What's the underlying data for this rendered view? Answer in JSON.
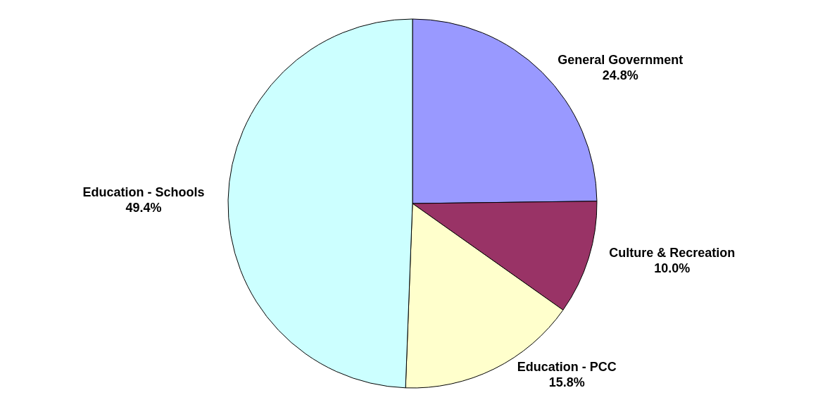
{
  "chart_data": {
    "type": "pie",
    "categories": [
      "General Government",
      "Culture & Recreation",
      "Education - PCC",
      "Education - Schools"
    ],
    "values": [
      24.8,
      10.0,
      15.8,
      49.4
    ],
    "value_labels": [
      "24.8%",
      "10.0%",
      "15.8%",
      "49.4%"
    ],
    "colors": [
      "#9999ff",
      "#993366",
      "#ffffcc",
      "#ccffff"
    ]
  }
}
